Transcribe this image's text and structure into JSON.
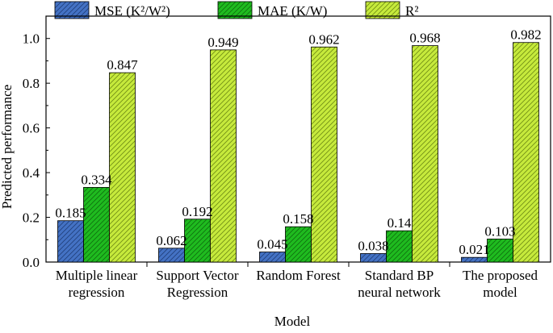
{
  "chart_data": {
    "type": "bar",
    "title": "",
    "xlabel": "Model",
    "ylabel": "Predicted performance",
    "ylim": [
      0,
      1.1
    ],
    "yticks": [
      "0.0",
      "0.2",
      "0.4",
      "0.6",
      "0.8",
      "1.0"
    ],
    "categories": [
      [
        "Multiple linear",
        "regression"
      ],
      [
        "Support Vector",
        "Regression"
      ],
      [
        "Random Forest"
      ],
      [
        "Standard BP",
        "neural network"
      ],
      [
        "The proposed",
        "model"
      ]
    ],
    "series": [
      {
        "name": "MSE (K²/W²)",
        "color": "#4472c4",
        "values": [
          0.185,
          0.062,
          0.045,
          0.038,
          0.021
        ],
        "labels": [
          "0.185",
          "0.062",
          "0.045",
          "0.038",
          "0.021"
        ]
      },
      {
        "name": "MAE (K/W)",
        "color": "#1fbb1f",
        "values": [
          0.334,
          0.192,
          0.158,
          0.14,
          0.103
        ],
        "labels": [
          "0.334",
          "0.192",
          "0.158",
          "0.14",
          "0.103"
        ]
      },
      {
        "name": "R²",
        "color": "#c6ea3c",
        "values": [
          0.847,
          0.949,
          0.962,
          0.968,
          0.982
        ],
        "labels": [
          "0.847",
          "0.949",
          "0.962",
          "0.968",
          "0.982"
        ]
      }
    ],
    "legend": "top"
  }
}
